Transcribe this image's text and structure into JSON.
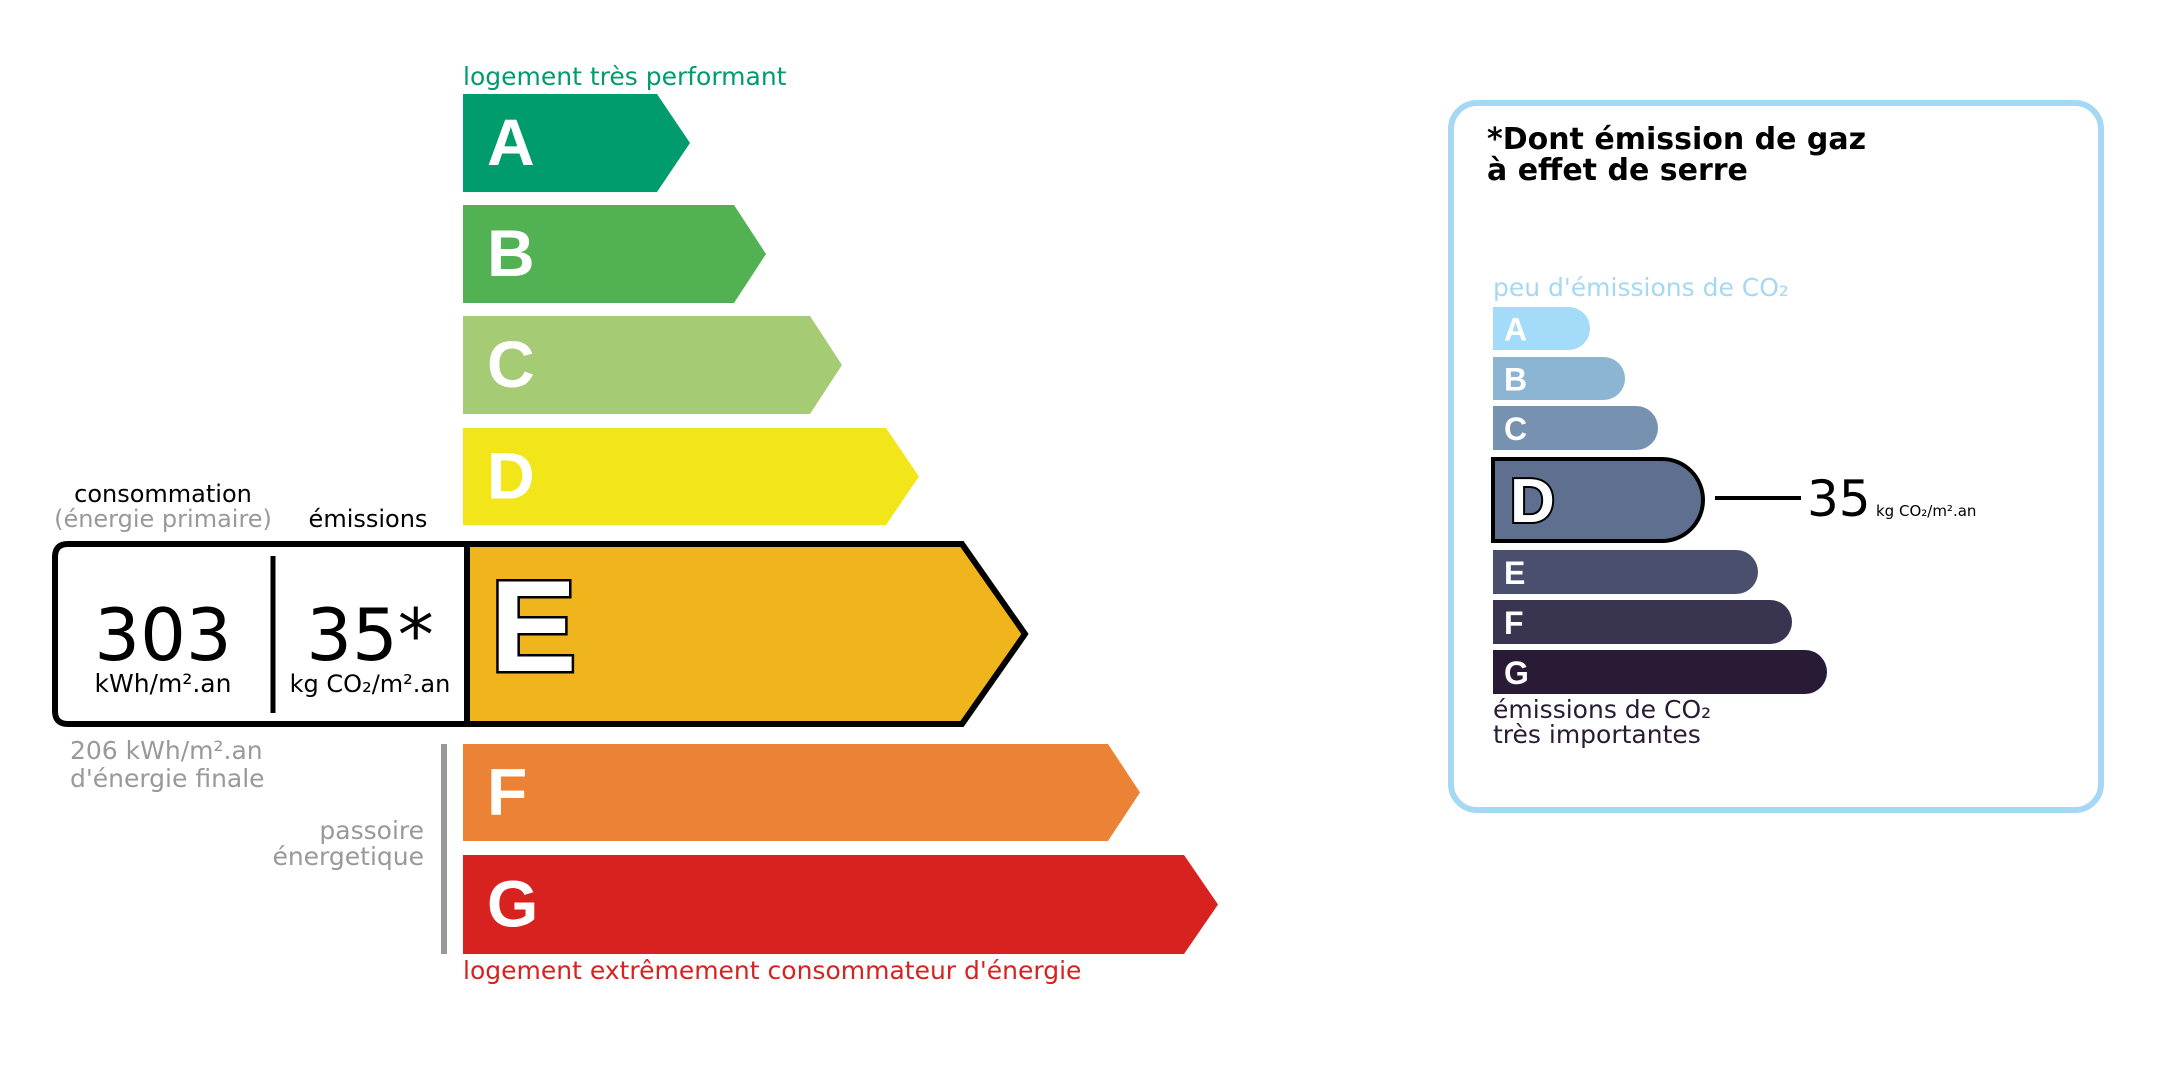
{
  "energy": {
    "top_label": "logement très performant",
    "bottom_label": "logement extrêmement consommateur d'énergie",
    "top_color": "#009c6d",
    "bottom_color": "#d7221f",
    "classes": [
      {
        "letter": "A",
        "color": "#009c6d"
      },
      {
        "letter": "B",
        "color": "#52b153"
      },
      {
        "letter": "C",
        "color": "#a5cc74"
      },
      {
        "letter": "D",
        "color": "#f2e61a"
      },
      {
        "letter": "E",
        "color": "#f0b41c"
      },
      {
        "letter": "F",
        "color": "#eb8235"
      },
      {
        "letter": "G",
        "color": "#d7221f"
      }
    ],
    "current_class": "E",
    "consumption_label": "consommation",
    "consumption_sub": "(énergie primaire)",
    "emissions_label": "émissions",
    "consumption_value": "303",
    "consumption_unit": "kWh/m².an",
    "emissions_value": "35*",
    "emissions_unit": "kg CO₂/m².an",
    "final_energy_value": "206 kWh/m².an",
    "final_energy_label": "d'énergie finale",
    "passoire_line1": "passoire",
    "passoire_line2": "énergetique"
  },
  "ges": {
    "title_line1": "*Dont émission de gaz",
    "title_line2": "à effet de serre",
    "top_label": "peu d'émissions de CO₂",
    "bottom_line1": "émissions de CO₂",
    "bottom_line2": "très importantes",
    "border_color": "#a5d8f3",
    "classes": [
      {
        "letter": "A",
        "color": "#a4dbf8"
      },
      {
        "letter": "B",
        "color": "#8cb4d3"
      },
      {
        "letter": "C",
        "color": "#7792b1"
      },
      {
        "letter": "D",
        "color": "#5f6f8f"
      },
      {
        "letter": "E",
        "color": "#4a4f6e"
      },
      {
        "letter": "F",
        "color": "#393551"
      },
      {
        "letter": "G",
        "color": "#291a35"
      }
    ],
    "current_class": "D",
    "value": "35",
    "unit": "kg CO₂/m².an"
  }
}
